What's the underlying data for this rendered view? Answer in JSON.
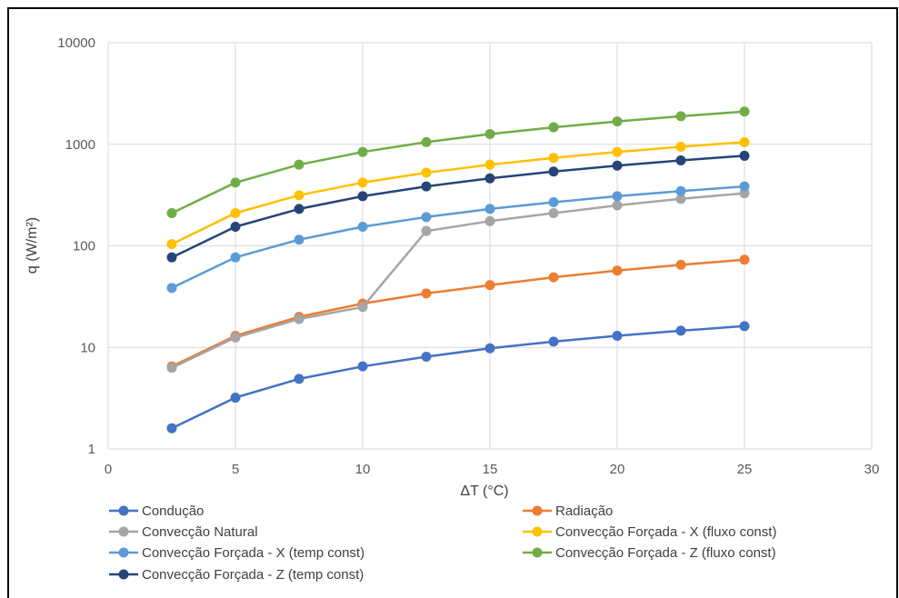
{
  "chart_data": {
    "type": "line",
    "title": "",
    "xlabel": "ΔT (°C)",
    "ylabel": "q (W/m²)",
    "xlim": [
      0,
      30
    ],
    "ylim": [
      1,
      10000
    ],
    "yscale": "log",
    "grid": true,
    "legend_position": "bottom",
    "x_ticks": [
      "0",
      "5",
      "10",
      "15",
      "20",
      "25",
      "30"
    ],
    "y_ticks": [
      "1",
      "10",
      "100",
      "1000",
      "10000"
    ],
    "x": [
      2.5,
      5,
      7.5,
      10,
      12.5,
      15,
      17.5,
      20,
      22.5,
      25
    ],
    "series": [
      {
        "name": "Condução",
        "color": "#4472C4",
        "values": [
          1.6,
          3.2,
          4.9,
          6.5,
          8.1,
          9.8,
          11.4,
          13.0,
          14.6,
          16.2
        ]
      },
      {
        "name": "Radiação",
        "color": "#ED7D31",
        "values": [
          6.5,
          13,
          20,
          27,
          34,
          41,
          49,
          57,
          65,
          73
        ]
      },
      {
        "name": "Convecção Natural",
        "color": "#A5A5A5",
        "values": [
          6.3,
          12.5,
          19,
          25,
          140,
          175,
          210,
          250,
          290,
          330
        ]
      },
      {
        "name": "Convecção Forçada - X (fluxo const)",
        "color": "#FFC000",
        "values": [
          104,
          210,
          315,
          420,
          525,
          630,
          735,
          840,
          945,
          1050
        ]
      },
      {
        "name": "Convecção Forçada - X (temp const)",
        "color": "#5B9BD5",
        "values": [
          38.5,
          77,
          115,
          154,
          192,
          231,
          269,
          308,
          346,
          385
        ]
      },
      {
        "name": "Convecção Forçada - Z (fluxo const)",
        "color": "#70AD47",
        "values": [
          210,
          420,
          630,
          840,
          1050,
          1260,
          1470,
          1680,
          1890,
          2100
        ]
      },
      {
        "name": "Convecção Forçada - Z (temp const)",
        "color": "#264478",
        "values": [
          77,
          154,
          231,
          308,
          385,
          462,
          539,
          616,
          693,
          770
        ]
      }
    ]
  }
}
